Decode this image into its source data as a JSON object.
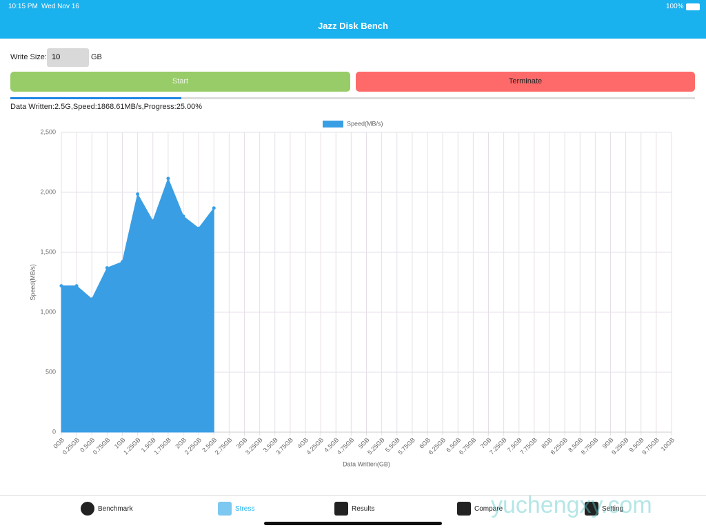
{
  "status_bar": {
    "time": "10:15 PM",
    "date": "Wed Nov 16",
    "battery": "100%"
  },
  "header": {
    "title": "Jazz Disk Bench"
  },
  "form": {
    "label": "Write Size:",
    "value": "10",
    "unit": "GB"
  },
  "buttons": {
    "start": "Start",
    "terminate": "Terminate"
  },
  "progress_percent": 25,
  "status": "Data Written:2.5G,Speed:1868.61MB/s,Progress:25.00%",
  "chart_data": {
    "type": "area",
    "xlabel": "Data Written(GB)",
    "ylabel": "Speed(MB/s)",
    "categories": [
      "0GB",
      "0.25GB",
      "0.5GB",
      "0.75GB",
      "1GB",
      "1.25GB",
      "1.5GB",
      "1.75GB",
      "2GB",
      "2.25GB",
      "2.5GB",
      "2.75GB",
      "3GB",
      "3.25GB",
      "3.5GB",
      "3.75GB",
      "4GB",
      "4.25GB",
      "4.5GB",
      "4.75GB",
      "5GB",
      "5.25GB",
      "5.5GB",
      "5.75GB",
      "6GB",
      "6.25GB",
      "6.5GB",
      "6.75GB",
      "7GB",
      "7.25GB",
      "7.5GB",
      "7.75GB",
      "8GB",
      "8.25GB",
      "8.5GB",
      "8.75GB",
      "9GB",
      "9.25GB",
      "9.5GB",
      "9.75GB",
      "10GB"
    ],
    "series": [
      {
        "name": "Speed(MB/s)",
        "color": "#3a9ee4",
        "values": [
          1220,
          1220,
          1110,
          1370,
          1420,
          1985,
          1760,
          2115,
          1800,
          1700,
          1868.61,
          null,
          null,
          null,
          null,
          null,
          null,
          null,
          null,
          null,
          null,
          null,
          null,
          null,
          null,
          null,
          null,
          null,
          null,
          null,
          null,
          null,
          null,
          null,
          null,
          null,
          null,
          null,
          null,
          null,
          null
        ]
      }
    ],
    "ylim": [
      0,
      2500
    ],
    "yticks": [
      0,
      500,
      {
        "value": 1000,
        "label": "1,000"
      },
      {
        "value": 1500,
        "label": "1,500"
      },
      {
        "value": 2000,
        "label": "2,000"
      },
      {
        "value": 2500,
        "label": "2,500"
      }
    ],
    "grid": true,
    "legend": "top"
  },
  "tabs": [
    "Benchmark",
    "Stress",
    "Results",
    "Compare",
    "Setting"
  ],
  "active_tab": 1,
  "watermark": "yuchengxy.com"
}
